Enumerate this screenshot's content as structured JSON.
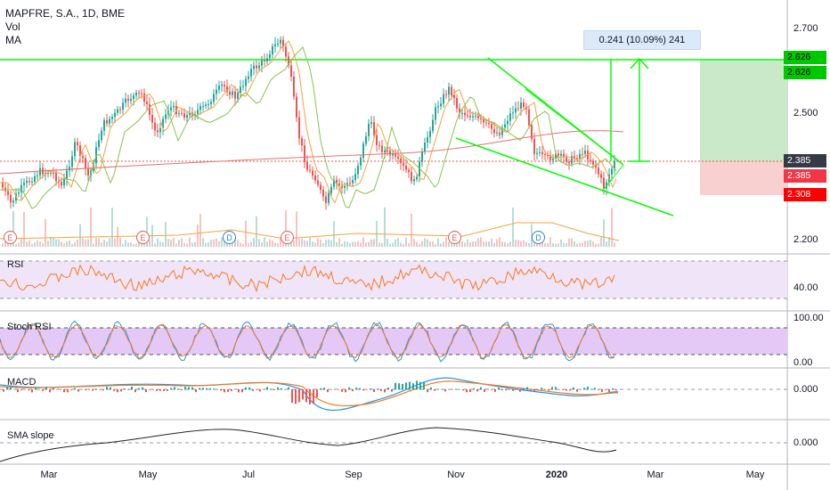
{
  "legend": {
    "symbol_line": "MAPFRE, S.A., 1D, BME",
    "vol_label": "Vol",
    "ma_label": "MA"
  },
  "measure": {
    "text": "0.241 (10.09%) 241"
  },
  "price_axis": {
    "ticks": [
      "2.700",
      "2.500",
      "2.200"
    ],
    "tags": [
      {
        "text": "2.626",
        "bg": "#00c800",
        "color": "#000000"
      },
      {
        "text": "2.626",
        "bg": "#00c800",
        "color": "#000000"
      },
      {
        "text": "2.385",
        "bg": "#363a45",
        "color": "#ffffff"
      },
      {
        "text": "2.385",
        "bg": "#f23645",
        "color": "#ffffff"
      },
      {
        "text": "2.308",
        "bg": "#ff0000",
        "color": "#ffffff"
      }
    ]
  },
  "panes": {
    "rsi": {
      "label": "RSI",
      "tick": "40.00"
    },
    "stoch": {
      "label": "Stoch RSI",
      "ticks": [
        "100.00",
        "0.00"
      ]
    },
    "macd": {
      "label": "MACD",
      "tick": "0.000"
    },
    "sma": {
      "label": "SMA slope",
      "tick": "0.000"
    }
  },
  "time_axis": [
    {
      "label": "Mar",
      "bold": false
    },
    {
      "label": "May",
      "bold": false
    },
    {
      "label": "Jul",
      "bold": false
    },
    {
      "label": "Sep",
      "bold": false
    },
    {
      "label": "Nov",
      "bold": false
    },
    {
      "label": "2020",
      "bold": true
    },
    {
      "label": "Mar",
      "bold": false
    },
    {
      "label": "May",
      "bold": false
    }
  ],
  "events": [
    "E",
    "E",
    "D",
    "E",
    "E",
    "D"
  ],
  "colors": {
    "up": "#26a69a",
    "down": "#ef5350",
    "trend_line": "#00ff00",
    "rsi_fill": "#f0e4f9",
    "stoch_fill": "#e4c8f5",
    "target_zone": "#c9e9c9",
    "stop_zone": "#f8d0d0"
  }
}
